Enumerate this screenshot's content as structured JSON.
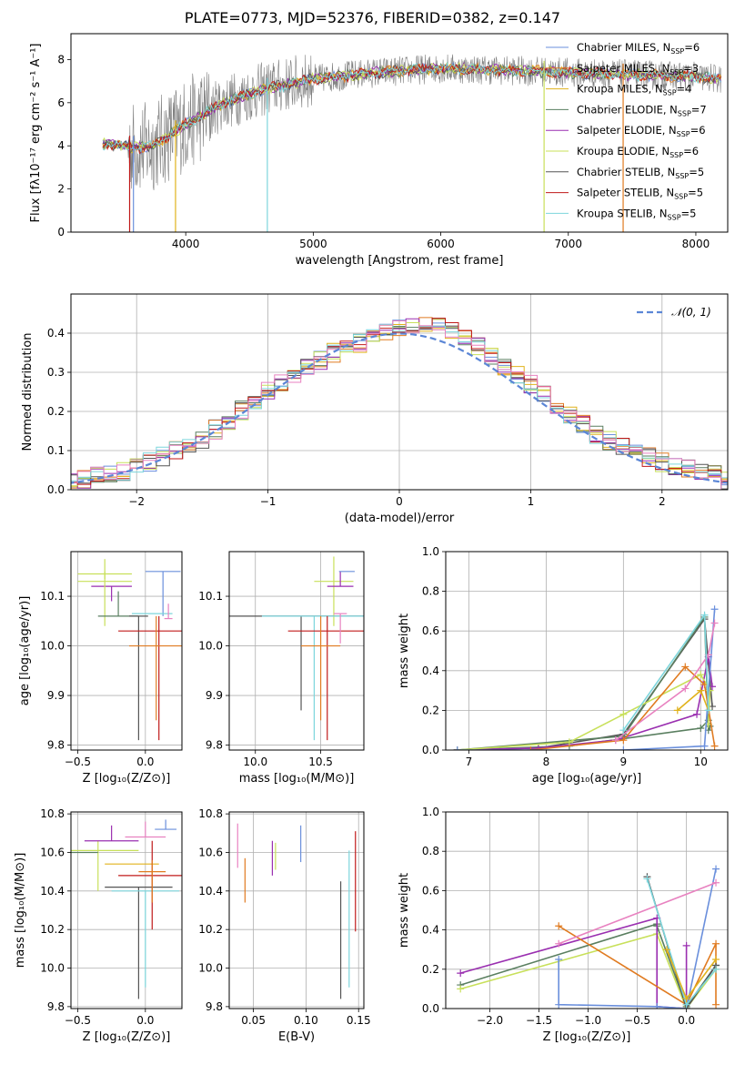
{
  "title": "PLATE=0773, MJD=52376, FIBERID=0382, z=0.147",
  "colors": {
    "Chabrier MILES": "#6a8fdc",
    "Salpeter MILES": "#e07b21",
    "Kroupa MILES": "#e0b21b",
    "Chabrier ELODIE": "#5a7f60",
    "Salpeter ELODIE": "#9a2fb0",
    "Kroupa ELODIE": "#c8e05a",
    "Chabrier STELIB": "#555555",
    "Salpeter STELIB": "#c01a1a",
    "Kroupa STELIB": "#7dd6dc",
    "pink": "#e882c0"
  },
  "chart_data": [
    {
      "type": "line",
      "title": "PLATE=0773, MJD=52376, FIBERID=0382, z=0.147",
      "xlabel": "wavelength [Angstrom, rest frame]",
      "ylabel": "Flux [fλ10⁻¹⁷ erg cm⁻² s⁻¹ A⁻¹]",
      "xlim": [
        3100,
        8250
      ],
      "ylim": [
        0,
        9.2
      ],
      "xticks": [
        4000,
        5000,
        6000,
        7000,
        8000
      ],
      "yticks": [
        0,
        2,
        4,
        6,
        8
      ],
      "grid": false,
      "legend_position": "right",
      "series": [
        {
          "name": "Chabrier MILES, N_SSP=6",
          "label": "Chabrier MILES, N",
          "sub": "SSP",
          "n": "=6"
        },
        {
          "name": "Salpeter MILES, N_SSP=3",
          "label": "Salpeter MILES, N",
          "sub": "SSP",
          "n": "=3"
        },
        {
          "name": "Kroupa MILES, N_SSP=4",
          "label": "Kroupa MILES, N",
          "sub": "SSP",
          "n": "=4"
        },
        {
          "name": "Chabrier ELODIE, N_SSP=7",
          "label": "Chabrier ELODIE, N",
          "sub": "SSP",
          "n": "=7"
        },
        {
          "name": "Salpeter ELODIE, N_SSP=6",
          "label": "Salpeter ELODIE, N",
          "sub": "SSP",
          "n": "=6"
        },
        {
          "name": "Kroupa ELODIE, N_SSP=6",
          "label": "Kroupa ELODIE, N",
          "sub": "SSP",
          "n": "=6"
        },
        {
          "name": "Chabrier STELIB, N_SSP=5",
          "label": "Chabrier STELIB, N",
          "sub": "SSP",
          "n": "=5"
        },
        {
          "name": "Salpeter STELIB, N_SSP=5",
          "label": "Salpeter STELIB, N",
          "sub": "SSP",
          "n": "=5"
        },
        {
          "name": "Kroupa STELIB, N_SSP=5",
          "label": "Kroupa STELIB, N",
          "sub": "SSP",
          "n": "=5"
        }
      ],
      "continuum": [
        [
          3350,
          4.1
        ],
        [
          3500,
          4.0
        ],
        [
          3700,
          3.9
        ],
        [
          3850,
          4.4
        ],
        [
          4000,
          5.0
        ],
        [
          4300,
          6.0
        ],
        [
          4600,
          6.6
        ],
        [
          5000,
          7.1
        ],
        [
          5500,
          7.4
        ],
        [
          6000,
          7.6
        ],
        [
          6500,
          7.5
        ],
        [
          7000,
          7.4
        ],
        [
          7500,
          7.3
        ],
        [
          8000,
          7.2
        ],
        [
          8200,
          7.1
        ]
      ]
    },
    {
      "type": "bar",
      "xlabel": "(data-model)/error",
      "ylabel": "Normed distribution",
      "xlim": [
        -2.5,
        2.5
      ],
      "ylim": [
        0,
        0.5
      ],
      "xticks": [
        -2,
        -1,
        0,
        1,
        2
      ],
      "yticks": [
        0.0,
        0.1,
        0.2,
        0.3,
        0.4
      ],
      "grid": true,
      "bin_width": 0.1,
      "legend": [
        {
          "label": "𝒩(0, 1)",
          "style": "dashed"
        }
      ],
      "envelope": [
        [
          -2.5,
          0.02
        ],
        [
          -2.0,
          0.055
        ],
        [
          -1.5,
          0.13
        ],
        [
          -1.0,
          0.25
        ],
        [
          -0.5,
          0.35
        ],
        [
          0.0,
          0.41
        ],
        [
          0.3,
          0.42
        ],
        [
          0.5,
          0.39
        ],
        [
          1.0,
          0.27
        ],
        [
          1.5,
          0.14
        ],
        [
          2.0,
          0.07
        ],
        [
          2.5,
          0.03
        ]
      ]
    },
    {
      "type": "scatter",
      "xlabel": "Z [log₁₀(Z/Z⊙)]",
      "ylabel": "age  [log₁₀(age/yr)]",
      "xlim": [
        -0.55,
        0.27
      ],
      "ylim": [
        9.79,
        10.19
      ],
      "xticks": [
        -0.5,
        0.0
      ],
      "yticks": [
        9.8,
        9.9,
        10.0,
        10.1
      ],
      "grid": true
    },
    {
      "type": "scatter",
      "xlabel": "mass [log₁₀(M/M⊙)]",
      "ylabel": "",
      "xlim": [
        9.8,
        10.83
      ],
      "ylim": [
        9.79,
        10.19
      ],
      "xticks": [
        10.0,
        10.5
      ],
      "yticks": [
        9.8,
        9.9,
        10.0,
        10.1
      ],
      "grid": true
    },
    {
      "type": "line",
      "xlabel": "age  [log₁₀(age/yr)]",
      "ylabel": "mass weight",
      "xlim": [
        6.7,
        10.35
      ],
      "ylim": [
        0.0,
        1.0
      ],
      "xticks": [
        7,
        8,
        9,
        10
      ],
      "yticks": [
        0.0,
        0.2,
        0.4,
        0.6,
        0.8,
        1.0
      ],
      "grid": true
    },
    {
      "type": "scatter",
      "xlabel": "Z [log₁₀(Z/Z⊙)]",
      "ylabel": "mass [log₁₀(M/M⊙)]",
      "xlim": [
        -0.55,
        0.27
      ],
      "ylim": [
        9.79,
        10.81
      ],
      "xticks": [
        -0.5,
        0.0
      ],
      "yticks": [
        9.8,
        10.0,
        10.2,
        10.4,
        10.6,
        10.8
      ],
      "grid": true
    },
    {
      "type": "scatter",
      "xlabel": "E(B-V)",
      "ylabel": "",
      "xlim": [
        0.027,
        0.155
      ],
      "ylim": [
        9.79,
        10.81
      ],
      "xticks": [
        0.05,
        0.1,
        0.15
      ],
      "yticks": [
        9.8,
        10.0,
        10.2,
        10.4,
        10.6,
        10.8
      ],
      "grid": true
    },
    {
      "type": "line",
      "xlabel": "Z [log₁₀(Z/Z⊙)]",
      "ylabel": "mass weight",
      "xlim": [
        -2.45,
        0.42
      ],
      "ylim": [
        0.0,
        1.0
      ],
      "xticks": [
        -2.0,
        -1.5,
        -1.0,
        -0.5,
        0.0
      ],
      "yticks": [
        0.0,
        0.2,
        0.4,
        0.6,
        0.8,
        1.0
      ],
      "grid": true
    }
  ]
}
